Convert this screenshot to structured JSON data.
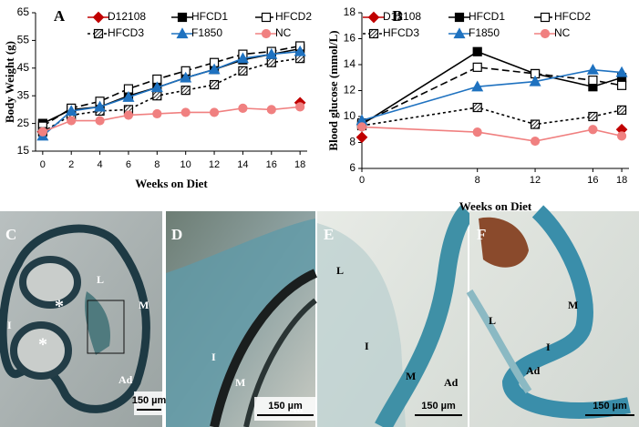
{
  "chart_data": [
    {
      "type": "line",
      "panel_label": "A",
      "ylabel": "Body Weight (g)",
      "xlabel": "Weeks on Diet",
      "x": [
        0,
        2,
        4,
        6,
        8,
        10,
        12,
        14,
        16,
        18
      ],
      "xlim": [
        -0.5,
        18.5
      ],
      "xticks": [
        0,
        2,
        4,
        6,
        8,
        10,
        12,
        14,
        16,
        18
      ],
      "ylim": [
        15,
        65
      ],
      "yticks": [
        15,
        25,
        35,
        45,
        55,
        65
      ],
      "legend": "top-left",
      "series": [
        {
          "name": "D12108",
          "color": "#c00000",
          "marker": "diamond",
          "line": "solid",
          "values": [
            22,
            null,
            null,
            null,
            null,
            null,
            null,
            null,
            null,
            32.5
          ]
        },
        {
          "name": "HFCD1",
          "color": "#000000",
          "marker": "square",
          "line": "solid",
          "values": [
            25,
            30,
            31,
            35,
            38,
            41.5,
            44.5,
            48,
            50,
            52
          ]
        },
        {
          "name": "HFCD2",
          "color": "#000000",
          "marker": "square-open",
          "line": "dash",
          "values": [
            24,
            30.5,
            33,
            37.5,
            41,
            44,
            47,
            50,
            51,
            53
          ]
        },
        {
          "name": "HFCD3",
          "color": "#000000",
          "marker": "square-hatched",
          "line": "dot",
          "values": [
            22,
            28,
            29.5,
            30,
            35,
            37,
            39,
            44,
            47,
            48.5
          ]
        },
        {
          "name": "F1850",
          "color": "#1f72c0",
          "marker": "triangle",
          "line": "solid",
          "values": [
            20.5,
            29.5,
            31,
            34.5,
            38,
            41.5,
            44.5,
            48.5,
            50,
            51
          ]
        },
        {
          "name": "NC",
          "color": "#f08080",
          "marker": "circle",
          "line": "solid",
          "values": [
            22,
            26,
            26,
            28,
            28.5,
            29,
            29,
            30.5,
            30,
            31
          ]
        }
      ]
    },
    {
      "type": "line",
      "panel_label": "B",
      "ylabel": "Blood glucose (mmol/L)",
      "xlabel": "Weeks on Diet",
      "x": [
        0,
        8,
        12,
        16,
        18
      ],
      "xlim": [
        0,
        18.5
      ],
      "xticks": [
        0,
        8,
        12,
        16,
        18
      ],
      "ylim": [
        6,
        18
      ],
      "yticks": [
        6,
        8,
        10,
        12,
        14,
        16,
        18
      ],
      "legend": "top-left",
      "series": [
        {
          "name": "D12108",
          "color": "#c00000",
          "marker": "diamond",
          "line": "solid",
          "values": [
            8.4,
            null,
            null,
            null,
            9.0
          ]
        },
        {
          "name": "HFCD1",
          "color": "#000000",
          "marker": "square",
          "line": "solid",
          "values": [
            9.4,
            15.0,
            13.3,
            12.3,
            13.0
          ]
        },
        {
          "name": "HFCD2",
          "color": "#000000",
          "marker": "square-open",
          "line": "dash",
          "values": [
            9.5,
            13.8,
            13.3,
            12.8,
            12.4
          ]
        },
        {
          "name": "HFCD3",
          "color": "#000000",
          "marker": "square-hatched",
          "line": "dot",
          "values": [
            9.3,
            10.7,
            9.4,
            10.0,
            10.5
          ]
        },
        {
          "name": "F1850",
          "color": "#1f72c0",
          "marker": "triangle",
          "line": "solid",
          "values": [
            9.7,
            12.3,
            12.7,
            13.6,
            13.4
          ]
        },
        {
          "name": "NC",
          "color": "#f08080",
          "marker": "circle",
          "line": "solid",
          "values": [
            9.2,
            8.8,
            8.1,
            9.0,
            8.5
          ]
        }
      ]
    }
  ],
  "panels": [
    {
      "label": "C",
      "annotations": [
        "L",
        "M",
        "I",
        "Ad",
        "*",
        "*"
      ],
      "scale_bar": "150 µm"
    },
    {
      "label": "D",
      "annotations": [
        "I",
        "M",
        "Ad"
      ],
      "scale_bar": "150 µm"
    },
    {
      "label": "E",
      "annotations": [
        "L",
        "I",
        "M",
        "Ad"
      ],
      "scale_bar": "150 µm"
    },
    {
      "label": "F",
      "annotations": [
        "L",
        "I",
        "M",
        "Ad"
      ],
      "scale_bar": "150 µm"
    }
  ]
}
